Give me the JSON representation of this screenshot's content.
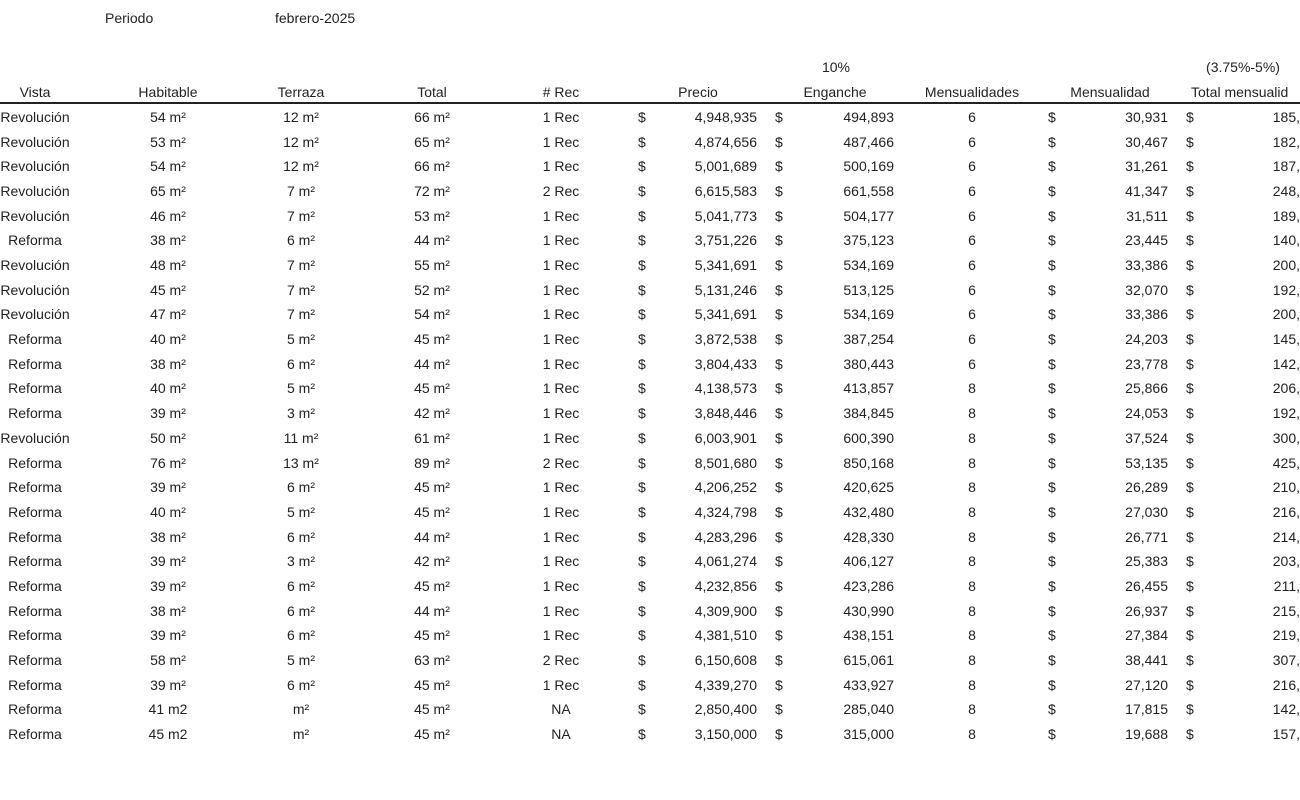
{
  "top": {
    "label": "Periodo",
    "value": "febrero-2025"
  },
  "table": {
    "superheaders": {
      "enganche": "10%",
      "total": "(3.75%-5%)"
    },
    "headers": [
      "Vista",
      "Habitable",
      "Terraza",
      "Total",
      "# Rec",
      "Precio",
      "Enganche",
      "Mensualidades",
      "Mensualidad",
      "Total mensualid"
    ],
    "currency": "$",
    "rows": [
      [
        "Revolución",
        "54 m²",
        "12 m²",
        "66 m²",
        "1 Rec",
        "4,948,935",
        "494,893",
        "6",
        "30,931",
        "185,"
      ],
      [
        "Revolución",
        "53 m²",
        "12 m²",
        "65 m²",
        "1 Rec",
        "4,874,656",
        "487,466",
        "6",
        "30,467",
        "182,"
      ],
      [
        "Revolución",
        "54 m²",
        "12 m²",
        "66 m²",
        "1 Rec",
        "5,001,689",
        "500,169",
        "6",
        "31,261",
        "187,"
      ],
      [
        "Revolución",
        "65 m²",
        "7 m²",
        "72 m²",
        "2 Rec",
        "6,615,583",
        "661,558",
        "6",
        "41,347",
        "248,"
      ],
      [
        "Revolución",
        "46 m²",
        "7 m²",
        "53 m²",
        "1 Rec",
        "5,041,773",
        "504,177",
        "6",
        "31,511",
        "189,"
      ],
      [
        "Reforma",
        "38 m²",
        "6 m²",
        "44 m²",
        "1 Rec",
        "3,751,226",
        "375,123",
        "6",
        "23,445",
        "140,"
      ],
      [
        "Revolución",
        "48 m²",
        "7 m²",
        "55 m²",
        "1 Rec",
        "5,341,691",
        "534,169",
        "6",
        "33,386",
        "200,"
      ],
      [
        "Revolución",
        "45 m²",
        "7 m²",
        "52 m²",
        "1 Rec",
        "5,131,246",
        "513,125",
        "6",
        "32,070",
        "192,"
      ],
      [
        "Revolución",
        "47 m²",
        "7 m²",
        "54 m²",
        "1 Rec",
        "5,341,691",
        "534,169",
        "6",
        "33,386",
        "200,"
      ],
      [
        "Reforma",
        "40 m²",
        "5 m²",
        "45 m²",
        "1 Rec",
        "3,872,538",
        "387,254",
        "6",
        "24,203",
        "145,"
      ],
      [
        "Reforma",
        "38 m²",
        "6 m²",
        "44 m²",
        "1 Rec",
        "3,804,433",
        "380,443",
        "6",
        "23,778",
        "142,"
      ],
      [
        "Reforma",
        "40 m²",
        "5 m²",
        "45 m²",
        "1 Rec",
        "4,138,573",
        "413,857",
        "8",
        "25,866",
        "206,"
      ],
      [
        "Reforma",
        "39 m²",
        "3 m²",
        "42 m²",
        "1 Rec",
        "3,848,446",
        "384,845",
        "8",
        "24,053",
        "192,"
      ],
      [
        "Revolución",
        "50 m²",
        "11 m²",
        "61 m²",
        "1 Rec",
        "6,003,901",
        "600,390",
        "8",
        "37,524",
        "300,"
      ],
      [
        "Reforma",
        "76 m²",
        "13 m²",
        "89 m²",
        "2 Rec",
        "8,501,680",
        "850,168",
        "8",
        "53,135",
        "425,"
      ],
      [
        "Reforma",
        "39 m²",
        "6 m²",
        "45 m²",
        "1 Rec",
        "4,206,252",
        "420,625",
        "8",
        "26,289",
        "210,"
      ],
      [
        "Reforma",
        "40 m²",
        "5 m²",
        "45 m²",
        "1 Rec",
        "4,324,798",
        "432,480",
        "8",
        "27,030",
        "216,"
      ],
      [
        "Reforma",
        "38 m²",
        "6 m²",
        "44 m²",
        "1 Rec",
        "4,283,296",
        "428,330",
        "8",
        "26,771",
        "214,"
      ],
      [
        "Reforma",
        "39 m²",
        "3 m²",
        "42 m²",
        "1 Rec",
        "4,061,274",
        "406,127",
        "8",
        "25,383",
        "203,"
      ],
      [
        "Reforma",
        "39 m²",
        "6 m²",
        "45 m²",
        "1 Rec",
        "4,232,856",
        "423,286",
        "8",
        "26,455",
        "211,"
      ],
      [
        "Reforma",
        "38 m²",
        "6 m²",
        "44 m²",
        "1 Rec",
        "4,309,900",
        "430,990",
        "8",
        "26,937",
        "215,"
      ],
      [
        "Reforma",
        "39 m²",
        "6 m²",
        "45 m²",
        "1 Rec",
        "4,381,510",
        "438,151",
        "8",
        "27,384",
        "219,"
      ],
      [
        "Reforma",
        "58 m²",
        "5 m²",
        "63 m²",
        "2 Rec",
        "6,150,608",
        "615,061",
        "8",
        "38,441",
        "307,"
      ],
      [
        "Reforma",
        "39 m²",
        "6 m²",
        "45 m²",
        "1 Rec",
        "4,339,270",
        "433,927",
        "8",
        "27,120",
        "216,"
      ],
      [
        "Reforma",
        "41 m2",
        "m²",
        "45 m²",
        "NA",
        "2,850,400",
        "285,040",
        "8",
        "17,815",
        "142,"
      ],
      [
        "Reforma",
        "45 m2",
        "m²",
        "45 m²",
        "NA",
        "3,150,000",
        "315,000",
        "8",
        "19,688",
        "157,"
      ]
    ]
  }
}
